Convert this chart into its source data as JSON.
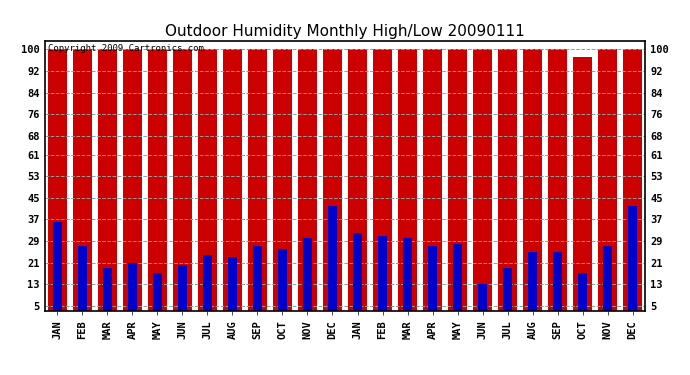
{
  "title": "Outdoor Humidity Monthly High/Low 20090111",
  "copyright_text": "Copyright 2009 Cartronics.com",
  "labels": [
    "JAN",
    "FEB",
    "MAR",
    "APR",
    "MAY",
    "JUN",
    "JUL",
    "AUG",
    "SEP",
    "OCT",
    "NOV",
    "DEC",
    "JAN",
    "FEB",
    "MAR",
    "APR",
    "MAY",
    "JUN",
    "JUL",
    "AUG",
    "SEP",
    "OCT",
    "NOV",
    "DEC"
  ],
  "high_values": [
    100,
    100,
    100,
    100,
    100,
    100,
    100,
    100,
    100,
    100,
    100,
    100,
    100,
    100,
    100,
    100,
    100,
    100,
    100,
    100,
    100,
    97,
    100,
    100
  ],
  "low_values": [
    36,
    27,
    19,
    21,
    17,
    20,
    24,
    23,
    27,
    26,
    30,
    42,
    32,
    31,
    30,
    27,
    28,
    13,
    19,
    25,
    25,
    17,
    27,
    42
  ],
  "bar_color_high": "#cc0000",
  "bar_color_low": "#0000cc",
  "bg_color": "#ffffff",
  "plot_bg_color": "#ffffff",
  "grid_color": "#999999",
  "yticks": [
    5,
    13,
    21,
    29,
    37,
    45,
    53,
    61,
    68,
    76,
    84,
    92,
    100
  ],
  "ylim": [
    3,
    103
  ],
  "title_fontsize": 11,
  "tick_fontsize": 7.5,
  "copyright_fontsize": 6.5
}
